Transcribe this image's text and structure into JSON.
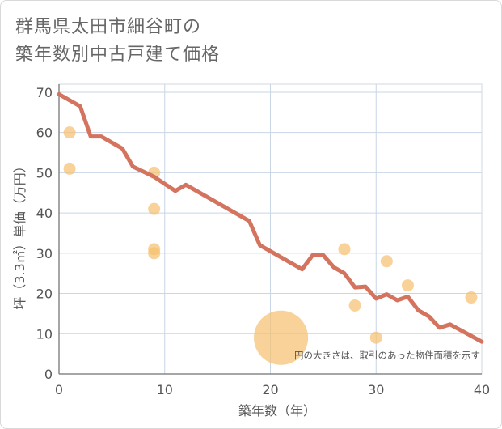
{
  "title_line1": "群馬県太田市細谷町の",
  "title_line2": "築年数別中古戸建て価格",
  "chart_data": {
    "type": "scatter",
    "title": "群馬県太田市細谷町の築年数別中古戸建て価格",
    "xlabel": "築年数（年）",
    "ylabel": "坪（3.3㎡）単価（万円）",
    "xlim": [
      0,
      40
    ],
    "ylim": [
      0,
      72
    ],
    "xticks": [
      0,
      10,
      20,
      30,
      40
    ],
    "yticks": [
      0,
      10,
      20,
      30,
      40,
      50,
      60,
      70
    ],
    "grid": true,
    "annotation": "円の大きさは、取引のあった物件面積を示す",
    "colors": {
      "points": "#f5c170",
      "line": "#d4735e",
      "grid": "#c8d6e6",
      "axis": "#555555"
    },
    "series": [
      {
        "kind": "scatter",
        "points": [
          {
            "x": 1,
            "y": 60,
            "size": 1
          },
          {
            "x": 1,
            "y": 51,
            "size": 1
          },
          {
            "x": 9,
            "y": 50,
            "size": 1
          },
          {
            "x": 9,
            "y": 41,
            "size": 1
          },
          {
            "x": 9,
            "y": 31,
            "size": 1
          },
          {
            "x": 9,
            "y": 30,
            "size": 1
          },
          {
            "x": 21,
            "y": 9,
            "size": 20
          },
          {
            "x": 27,
            "y": 31,
            "size": 1
          },
          {
            "x": 28,
            "y": 17,
            "size": 1
          },
          {
            "x": 30,
            "y": 9,
            "size": 1
          },
          {
            "x": 31,
            "y": 28,
            "size": 1
          },
          {
            "x": 33,
            "y": 22,
            "size": 1
          },
          {
            "x": 39,
            "y": 19,
            "size": 1
          }
        ]
      },
      {
        "kind": "line",
        "x": [
          0,
          2,
          3,
          4,
          6,
          7,
          9,
          11,
          12,
          18,
          19,
          23,
          24,
          25,
          26,
          27,
          28,
          29,
          30,
          31,
          32,
          33,
          34,
          35,
          36,
          37,
          40
        ],
        "y": [
          69.5,
          66.5,
          59,
          59,
          56,
          51.5,
          49,
          45.5,
          47,
          38,
          32,
          26,
          29.5,
          29.5,
          26.5,
          25,
          21.5,
          21.7,
          18.7,
          19.8,
          18.3,
          19.2,
          15.8,
          14.3,
          11.5,
          12.3,
          8
        ]
      }
    ]
  }
}
